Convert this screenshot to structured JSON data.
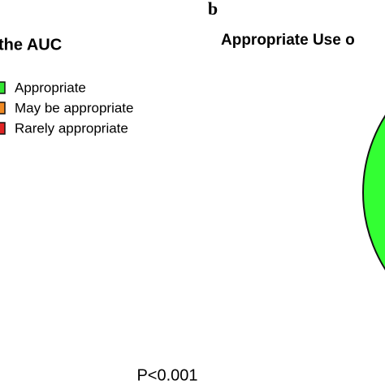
{
  "figure": {
    "panel_label": "b",
    "left_title": "the AUC",
    "right_title": "Appropriate Use o",
    "legend": [
      {
        "label": "Appropriate",
        "color": "#33e533"
      },
      {
        "label": "May be appropriate",
        "color": "#f08a24"
      },
      {
        "label": "Rarely appropriate",
        "color": "#e02424"
      }
    ],
    "pie_color": "#33ff33",
    "note": "P<0.001"
  }
}
